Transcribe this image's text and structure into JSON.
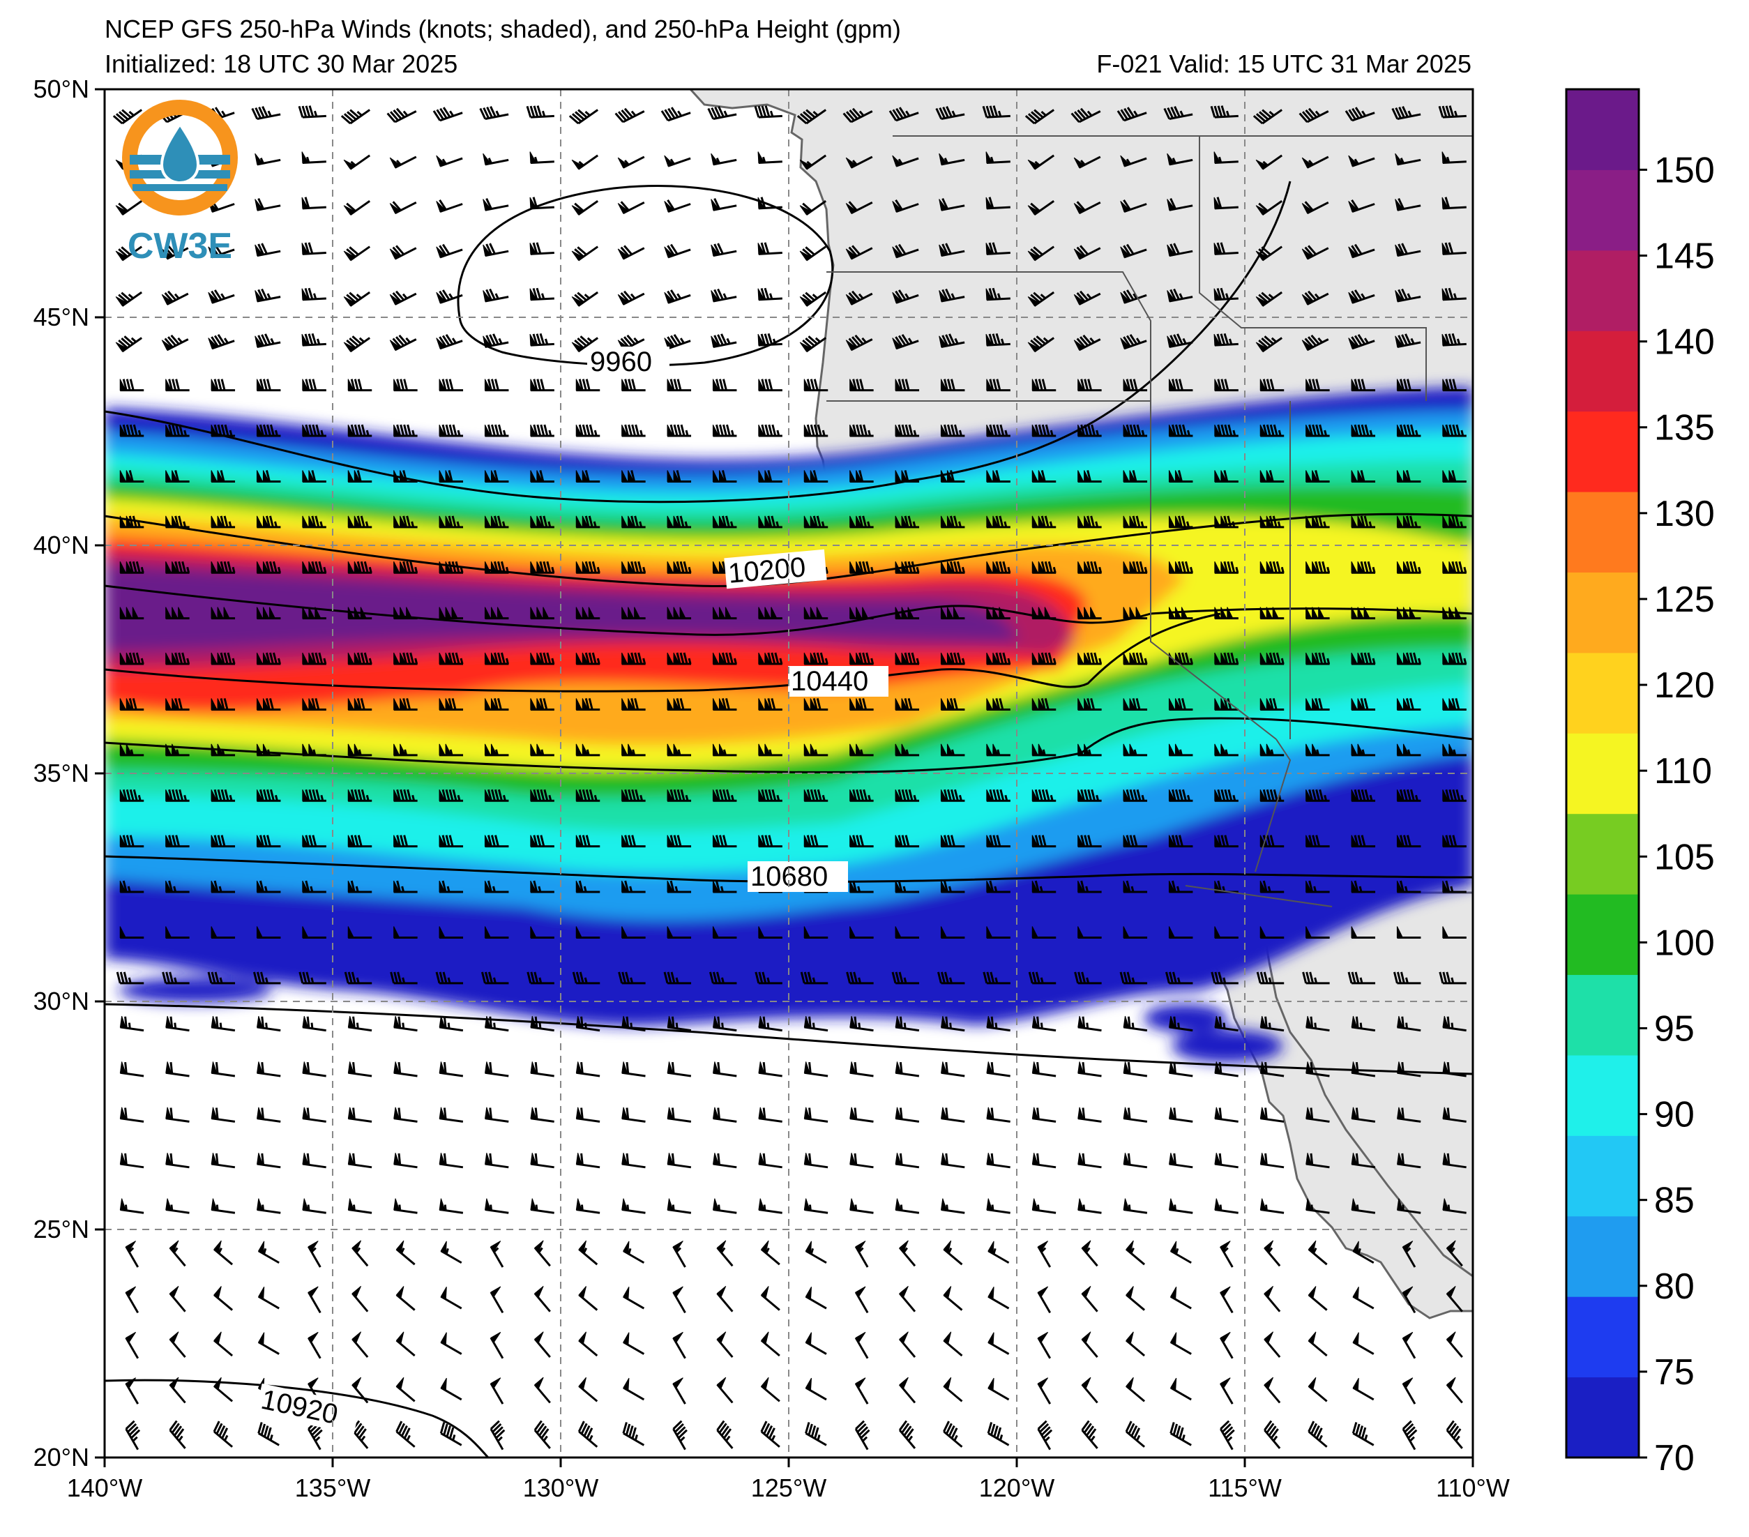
{
  "title": {
    "line1": "NCEP GFS 250-hPa Winds (knots; shaded), and 250-hPa Height (gpm)",
    "line2_left": "Initialized: 18 UTC 30 Mar 2025",
    "line2_right": "F-021  Valid: 15 UTC 31 Mar 2025"
  },
  "logo": {
    "text": "CW3E"
  },
  "map": {
    "lon_range": [
      -140,
      -110
    ],
    "lat_range": [
      20,
      50
    ],
    "lon_ticks": [
      "140°W",
      "135°W",
      "130°W",
      "125°W",
      "120°W",
      "115°W",
      "110°W"
    ],
    "lat_ticks": [
      "20°N",
      "25°N",
      "30°N",
      "35°N",
      "40°N",
      "45°N",
      "50°N"
    ],
    "grid": "dashed",
    "land_color": "#e6e6e6"
  },
  "height_contours": {
    "units": "gpm",
    "labels": [
      "9960",
      "10200",
      "10440",
      "10680",
      "10920"
    ]
  },
  "colorbar": {
    "units": "knots",
    "tick_labels": [
      "70",
      "75",
      "80",
      "85",
      "90",
      "95",
      "100",
      "105",
      "110",
      "120",
      "125",
      "130",
      "135",
      "140",
      "145",
      "150"
    ],
    "colors": [
      "#1a1fc4",
      "#1e3cf0",
      "#1f9cf0",
      "#22c8f5",
      "#1ff0ea",
      "#1ee0a8",
      "#22bb22",
      "#77cc22",
      "#f5f522",
      "#ffd21e",
      "#ffaa1e",
      "#ff7a1e",
      "#ff2a1e",
      "#d41e3c",
      "#b01e64",
      "#8a1e86",
      "#6b1a8a"
    ]
  }
}
